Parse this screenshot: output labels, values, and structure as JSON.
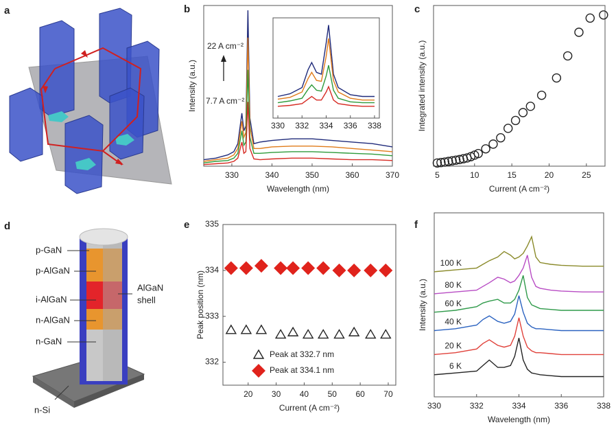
{
  "panel_labels": [
    "a",
    "b",
    "c",
    "d",
    "e",
    "f"
  ],
  "diagram_d": {
    "layers": [
      "p-GaN",
      "p-AlGaN",
      "i-AlGaN",
      "n-AlGaN",
      "n-GaN",
      "n-Si"
    ],
    "shell": [
      "AlGaN",
      "shell"
    ]
  },
  "chart_data": [
    {
      "type": "line",
      "xlabel": "Wavelength (nm)",
      "ylabel": "Intensity (a.u.)",
      "annotations": [
        "22 A cm⁻²",
        "7.7 A cm⁻²"
      ],
      "x": [
        323,
        326,
        329,
        330.5,
        331.5,
        332.5,
        333,
        333.5,
        334,
        334.5,
        335.5,
        337,
        340,
        345,
        350,
        355,
        360,
        365,
        370
      ],
      "xlim": [
        323,
        370
      ],
      "xticks": [
        330,
        340,
        350,
        360,
        370
      ],
      "ylim": [
        0,
        10
      ],
      "series": [
        {
          "color": "#1f2a7a",
          "values": [
            0.4,
            0.5,
            0.7,
            0.9,
            1.4,
            3.3,
            2.2,
            2.5,
            9.7,
            3.0,
            1.4,
            1.5,
            1.6,
            1.7,
            1.7,
            1.6,
            1.5,
            1.4,
            1.2
          ]
        },
        {
          "color": "#e07b1a",
          "values": [
            0.3,
            0.4,
            0.5,
            0.7,
            1.1,
            2.8,
            1.8,
            2.1,
            8.0,
            2.5,
            1.1,
            1.1,
            1.2,
            1.25,
            1.25,
            1.2,
            1.1,
            1.0,
            0.9
          ]
        },
        {
          "color": "#2e9a3a",
          "values": [
            0.2,
            0.3,
            0.35,
            0.5,
            0.8,
            2.2,
            1.3,
            1.5,
            6.0,
            1.8,
            0.8,
            0.8,
            0.85,
            0.9,
            0.9,
            0.85,
            0.8,
            0.75,
            0.65
          ]
        },
        {
          "color": "#d62a22",
          "values": [
            0.1,
            0.15,
            0.2,
            0.3,
            0.5,
            1.5,
            0.8,
            0.9,
            4.0,
            1.1,
            0.45,
            0.4,
            0.45,
            0.5,
            0.5,
            0.45,
            0.4,
            0.4,
            0.35
          ]
        }
      ]
    },
    {
      "type": "line",
      "x": [
        330,
        331,
        332,
        332.5,
        332.8,
        333.2,
        333.6,
        334,
        334.2,
        334.6,
        335,
        336,
        337,
        338
      ],
      "xlim": [
        329.6,
        338.4
      ],
      "xticks": [
        330,
        332,
        334,
        336,
        338
      ],
      "ylim": [
        0,
        10
      ],
      "series": [
        {
          "color": "#1f2a7a",
          "values": [
            1.5,
            1.8,
            2.5,
            4.5,
            5.3,
            4.2,
            4.0,
            7.5,
            9.5,
            4.0,
            2.5,
            1.7,
            1.5,
            1.5
          ]
        },
        {
          "color": "#e07b1a",
          "values": [
            1.2,
            1.4,
            2.0,
            3.5,
            4.2,
            3.3,
            3.2,
            6.0,
            8.0,
            3.3,
            2.0,
            1.3,
            1.1,
            1.1
          ]
        },
        {
          "color": "#2e9a3a",
          "values": [
            0.8,
            1.0,
            1.3,
            2.3,
            2.8,
            2.2,
            2.1,
            3.8,
            5.0,
            2.2,
            1.3,
            0.9,
            0.8,
            0.8
          ]
        },
        {
          "color": "#d62a22",
          "values": [
            0.4,
            0.5,
            0.7,
            1.2,
            1.5,
            1.1,
            1.1,
            2.0,
            2.6,
            1.1,
            0.7,
            0.5,
            0.4,
            0.4
          ]
        }
      ]
    },
    {
      "type": "scatter",
      "xlabel": "Current (A cm⁻²)",
      "ylabel": "Integrated intensity (a.u.)",
      "xlim": [
        4.5,
        27.5
      ],
      "xticks": [
        5,
        10,
        15,
        20,
        25
      ],
      "ylim": [
        -2,
        100
      ],
      "series": [
        {
          "marker": "circle",
          "color": "#222222",
          "facecolor": "none",
          "x": [
            5,
            5.5,
            6,
            6.5,
            7,
            7.5,
            8,
            8.5,
            9,
            9.5,
            10,
            10.5,
            11.5,
            12.5,
            13.5,
            14.5,
            15.5,
            16.5,
            17.5,
            19,
            21,
            22.5,
            24,
            25.5,
            27.3
          ],
          "values": [
            0,
            0.3,
            0.6,
            1,
            1.4,
            1.8,
            2.2,
            2.7,
            3.2,
            4,
            5,
            6,
            9,
            12,
            16,
            22,
            27,
            32,
            36,
            43,
            54,
            68,
            83,
            92,
            94
          ]
        }
      ]
    },
    {
      "type": "scatter",
      "xlabel": "Current (A cm⁻²)",
      "ylabel": "Peak position (nm)",
      "xlim": [
        11,
        72.7
      ],
      "xticks": [
        20,
        30,
        40,
        50,
        60,
        70
      ],
      "ylim": [
        331.5,
        335
      ],
      "yticks": [
        332,
        333,
        334,
        335
      ],
      "legend": "lower left",
      "series": [
        {
          "name": "Peak at 332.7 nm",
          "marker": "triangle",
          "color": "#222222",
          "facecolor": "none",
          "x": [
            13.9,
            19.3,
            24.7,
            31.6,
            36,
            41.4,
            46.8,
            52.5,
            57.8,
            63.7,
            69.1
          ],
          "values": [
            332.7,
            332.7,
            332.7,
            332.6,
            332.65,
            332.6,
            332.6,
            332.6,
            332.65,
            332.6,
            332.6
          ]
        },
        {
          "name": "Peak at 334.1 nm",
          "marker": "diamond",
          "color": "#e0231c",
          "facecolor": "#e0231c",
          "x": [
            13.9,
            19.3,
            24.7,
            31.6,
            36,
            41.4,
            46.8,
            52.5,
            57.8,
            63.7,
            69.1
          ],
          "values": [
            334.05,
            334.05,
            334.1,
            334.05,
            334.05,
            334.05,
            334.05,
            334.0,
            334.0,
            334.0,
            334.0
          ]
        }
      ]
    },
    {
      "type": "line",
      "xlabel": "Wavelength (nm)",
      "ylabel": "Intensity (a.u.)",
      "curve_labels": true,
      "x": [
        330,
        331,
        332,
        332.3,
        332.6,
        333,
        333.3,
        333.6,
        333.8,
        334,
        334.2,
        334.4,
        334.6,
        334.8,
        335,
        335.5,
        336,
        337,
        338
      ],
      "xlim": [
        330,
        338
      ],
      "xticks": [
        330,
        332,
        334,
        336,
        338
      ],
      "ylim": [
        0,
        10
      ],
      "series": [
        {
          "name": "6 K",
          "color": "#222222",
          "values": [
            1.2,
            1.3,
            1.4,
            1.7,
            2.0,
            1.6,
            1.6,
            1.7,
            2.2,
            3.2,
            2.0,
            1.5,
            1.3,
            1.25,
            1.2,
            1.15,
            1.1,
            1.1,
            1.1
          ]
        },
        {
          "name": "20 K",
          "color": "#e0413a",
          "values": [
            2.3,
            2.4,
            2.6,
            2.9,
            3.1,
            2.8,
            2.7,
            2.8,
            3.3,
            4.3,
            3.3,
            2.7,
            2.5,
            2.4,
            2.4,
            2.35,
            2.3,
            2.3,
            2.3
          ]
        },
        {
          "name": "40 K",
          "color": "#2a62c0",
          "values": [
            3.6,
            3.7,
            3.9,
            4.2,
            4.4,
            4.1,
            4.0,
            4.1,
            4.5,
            5.5,
            4.6,
            4.0,
            3.8,
            3.7,
            3.7,
            3.65,
            3.6,
            3.6,
            3.6
          ]
        },
        {
          "name": "60 K",
          "color": "#2f9a4a",
          "values": [
            4.6,
            4.7,
            4.9,
            5.1,
            5.2,
            5.3,
            5.1,
            5.1,
            5.3,
            5.8,
            6.6,
            5.4,
            5.0,
            4.9,
            4.8,
            4.75,
            4.7,
            4.7,
            4.7
          ]
        },
        {
          "name": "80 K",
          "color": "#b84cc4",
          "values": [
            5.6,
            5.7,
            5.8,
            6.0,
            6.2,
            6.5,
            6.4,
            6.2,
            6.3,
            6.6,
            7.0,
            7.7,
            6.5,
            6.0,
            5.9,
            5.8,
            5.75,
            5.7,
            5.7
          ]
        },
        {
          "name": "100 K",
          "color": "#8a8a2a",
          "values": [
            6.8,
            6.9,
            7.0,
            7.2,
            7.4,
            7.6,
            7.9,
            7.7,
            7.5,
            7.6,
            7.8,
            8.2,
            8.7,
            7.6,
            7.3,
            7.2,
            7.15,
            7.1,
            7.1
          ]
        }
      ]
    }
  ]
}
